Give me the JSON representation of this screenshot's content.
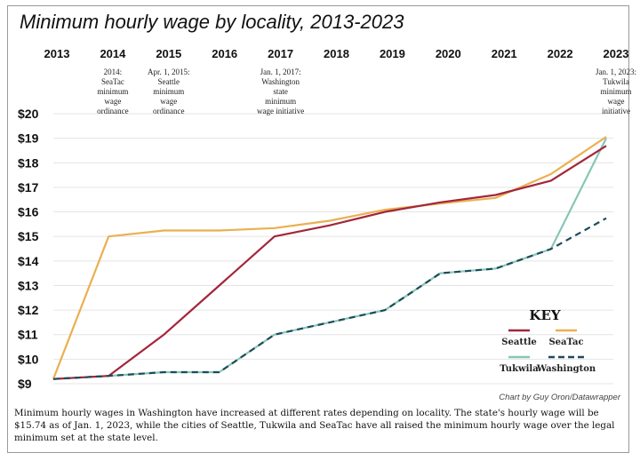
{
  "chart_data": {
    "type": "line",
    "title": "Minimum hourly wage by locality, 2013-2023",
    "x": [
      2013,
      2014,
      2015,
      2016,
      2017,
      2018,
      2019,
      2020,
      2021,
      2022,
      2023
    ],
    "x_tick_labels": [
      "2013",
      "2014",
      "2015",
      "2016",
      "2017",
      "2018",
      "2019",
      "2020",
      "2021",
      "2022",
      "2023"
    ],
    "y_tick_labels": [
      "$20",
      "$19",
      "$18",
      "$17",
      "$16",
      "$15",
      "$14",
      "$13",
      "$12",
      "$11",
      "$10",
      "$9"
    ],
    "ylim": [
      9,
      20
    ],
    "grid": true,
    "series": [
      {
        "name": "Seattle",
        "color": "#a3263a",
        "dash": false,
        "values": [
          9.19,
          9.32,
          11.0,
          13.0,
          15.0,
          15.45,
          16.0,
          16.39,
          16.69,
          17.27,
          18.69
        ]
      },
      {
        "name": "SeaTac",
        "color": "#eab050",
        "dash": false,
        "values": [
          9.19,
          15.0,
          15.24,
          15.24,
          15.34,
          15.64,
          16.09,
          16.34,
          16.57,
          17.54,
          19.06
        ]
      },
      {
        "name": "Tukwila",
        "color": "#86c7b3",
        "dash": false,
        "values": [
          9.19,
          9.32,
          9.47,
          9.47,
          11.0,
          11.5,
          12.0,
          13.5,
          13.69,
          14.49,
          19.0
        ]
      },
      {
        "name": "Washington",
        "color": "#1f4a5c",
        "dash": true,
        "values": [
          9.19,
          9.32,
          9.47,
          9.47,
          11.0,
          11.5,
          12.0,
          13.5,
          13.69,
          14.49,
          15.74
        ]
      }
    ],
    "annotations": [
      {
        "year": 2014,
        "lines": [
          "2014:",
          "SeaTac",
          "minimum",
          "wage",
          "ordinance"
        ]
      },
      {
        "year": 2015,
        "lines": [
          "Apr. 1, 2015:",
          "Seattle",
          "minimum",
          "wage",
          "ordinance"
        ]
      },
      {
        "year": 2017,
        "lines": [
          "Jan. 1, 2017:",
          "Washington",
          "state",
          "minimum",
          "wage initiative"
        ]
      },
      {
        "year": 2023,
        "lines": [
          "Jan. 1, 2023:",
          "Tukwila",
          "minimum",
          "wage",
          "initiative"
        ]
      }
    ],
    "legend": {
      "title": "KEY",
      "placement": "bottom-right"
    }
  },
  "credit": "Chart by Guy Oron/Datawrapper",
  "caption": "Minimum hourly wages in Washington have increased at different rates depending on locality. The state's hourly wage will be $15.74 as of Jan. 1, 2023, while the cities of Seattle, Tukwila and SeaTac have all raised the minimum hourly wage over the legal minimum set at the state level."
}
